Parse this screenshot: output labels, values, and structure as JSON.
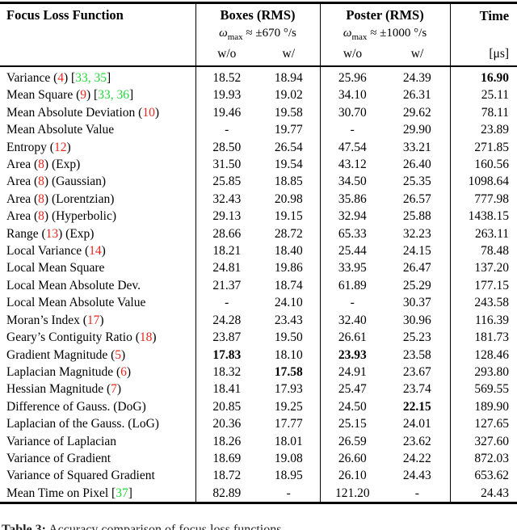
{
  "table": {
    "header": {
      "label_col": "Focus Loss Function",
      "groups": [
        {
          "title": "Boxes (RMS)",
          "omega_symbol": "ω",
          "omega_sub": "max",
          "omega_rest": " ≈ ±670 °/s",
          "subcols": [
            "w/o",
            "w/"
          ]
        },
        {
          "title": "Poster (RMS)",
          "omega_symbol": "ω",
          "omega_sub": "max",
          "omega_rest": " ≈ ±1000 °/s",
          "subcols": [
            "w/o",
            "w/"
          ]
        }
      ],
      "time_col": {
        "title": "Time",
        "unit": "[μs]"
      }
    },
    "rows": [
      {
        "label": "Variance (4) [33, 35]",
        "values": [
          "18.52",
          "18.94",
          "25.96",
          "24.39",
          "16.90"
        ],
        "bold": [
          4
        ]
      },
      {
        "label": "Mean Square (9) [33, 36]",
        "values": [
          "19.93",
          "19.02",
          "34.10",
          "26.31",
          "25.11"
        ],
        "bold": []
      },
      {
        "label": "Mean Absolute Deviation (10)",
        "values": [
          "19.46",
          "19.58",
          "30.70",
          "29.62",
          "78.11"
        ],
        "bold": []
      },
      {
        "label": "Mean Absolute Value",
        "values": [
          "-",
          "19.77",
          "-",
          "29.90",
          "23.89"
        ],
        "bold": []
      },
      {
        "label": "Entropy (12)",
        "values": [
          "28.50",
          "26.54",
          "47.54",
          "33.21",
          "271.85"
        ],
        "bold": []
      },
      {
        "label": "Area (8) (Exp)",
        "values": [
          "31.50",
          "19.54",
          "43.12",
          "26.40",
          "160.56"
        ],
        "bold": []
      },
      {
        "label": "Area (8) (Gaussian)",
        "values": [
          "25.85",
          "18.85",
          "34.50",
          "25.35",
          "1098.64"
        ],
        "bold": []
      },
      {
        "label": "Area (8) (Lorentzian)",
        "values": [
          "32.43",
          "20.98",
          "35.86",
          "26.57",
          "777.98"
        ],
        "bold": []
      },
      {
        "label": "Area (8) (Hyperbolic)",
        "values": [
          "29.13",
          "19.15",
          "32.94",
          "25.88",
          "1438.15"
        ],
        "bold": []
      },
      {
        "label": "Range (13) (Exp)",
        "values": [
          "28.66",
          "28.72",
          "65.33",
          "32.23",
          "263.11"
        ],
        "bold": []
      },
      {
        "label": "Local Variance (14)",
        "values": [
          "18.21",
          "18.40",
          "25.44",
          "24.15",
          "78.48"
        ],
        "bold": []
      },
      {
        "label": "Local Mean Square",
        "values": [
          "24.81",
          "19.86",
          "33.95",
          "26.47",
          "137.20"
        ],
        "bold": []
      },
      {
        "label": "Local Mean Absolute Dev.",
        "values": [
          "21.37",
          "18.74",
          "61.89",
          "25.29",
          "177.15"
        ],
        "bold": []
      },
      {
        "label": "Local Mean Absolute Value",
        "values": [
          "-",
          "24.10",
          "-",
          "30.37",
          "243.58"
        ],
        "bold": []
      },
      {
        "label": "Moran’s Index (17)",
        "values": [
          "24.28",
          "23.43",
          "32.40",
          "30.96",
          "116.39"
        ],
        "bold": []
      },
      {
        "label": "Geary’s Contiguity Ratio (18)",
        "values": [
          "23.87",
          "19.50",
          "26.61",
          "25.23",
          "181.73"
        ],
        "bold": []
      },
      {
        "label": "Gradient Magnitude (5)",
        "values": [
          "17.83",
          "18.10",
          "23.93",
          "23.58",
          "128.46"
        ],
        "bold": [
          0,
          2
        ]
      },
      {
        "label": "Laplacian Magnitude (6)",
        "values": [
          "18.32",
          "17.58",
          "24.91",
          "23.67",
          "293.80"
        ],
        "bold": [
          1
        ]
      },
      {
        "label": "Hessian Magnitude (7)",
        "values": [
          "18.41",
          "17.93",
          "25.47",
          "23.74",
          "569.55"
        ],
        "bold": []
      },
      {
        "label": "Difference of Gauss. (DoG)",
        "values": [
          "20.85",
          "19.25",
          "24.50",
          "22.15",
          "189.90"
        ],
        "bold": [
          3
        ]
      },
      {
        "label": "Laplacian of the Gauss. (LoG)",
        "values": [
          "20.36",
          "17.77",
          "25.15",
          "24.01",
          "127.65"
        ],
        "bold": []
      },
      {
        "label": "Variance of Laplacian",
        "values": [
          "18.26",
          "18.01",
          "26.59",
          "23.62",
          "327.60"
        ],
        "bold": []
      },
      {
        "label": "Variance of Gradient",
        "values": [
          "18.69",
          "19.08",
          "26.60",
          "24.22",
          "872.03"
        ],
        "bold": []
      },
      {
        "label": "Variance of Squared Gradient",
        "values": [
          "18.72",
          "18.95",
          "26.10",
          "24.43",
          "653.62"
        ],
        "bold": []
      },
      {
        "label": "Mean Time on Pixel [37]",
        "values": [
          "82.89",
          "-",
          "121.20",
          "-",
          "24.43"
        ],
        "bold": []
      }
    ]
  },
  "caption": {
    "prefix": "Table 3:",
    "text_clipped": "Accuracy comparison of focus loss functions"
  },
  "colors": {
    "eqref_red": "#e8271d",
    "cite_green": "#21d93c"
  }
}
